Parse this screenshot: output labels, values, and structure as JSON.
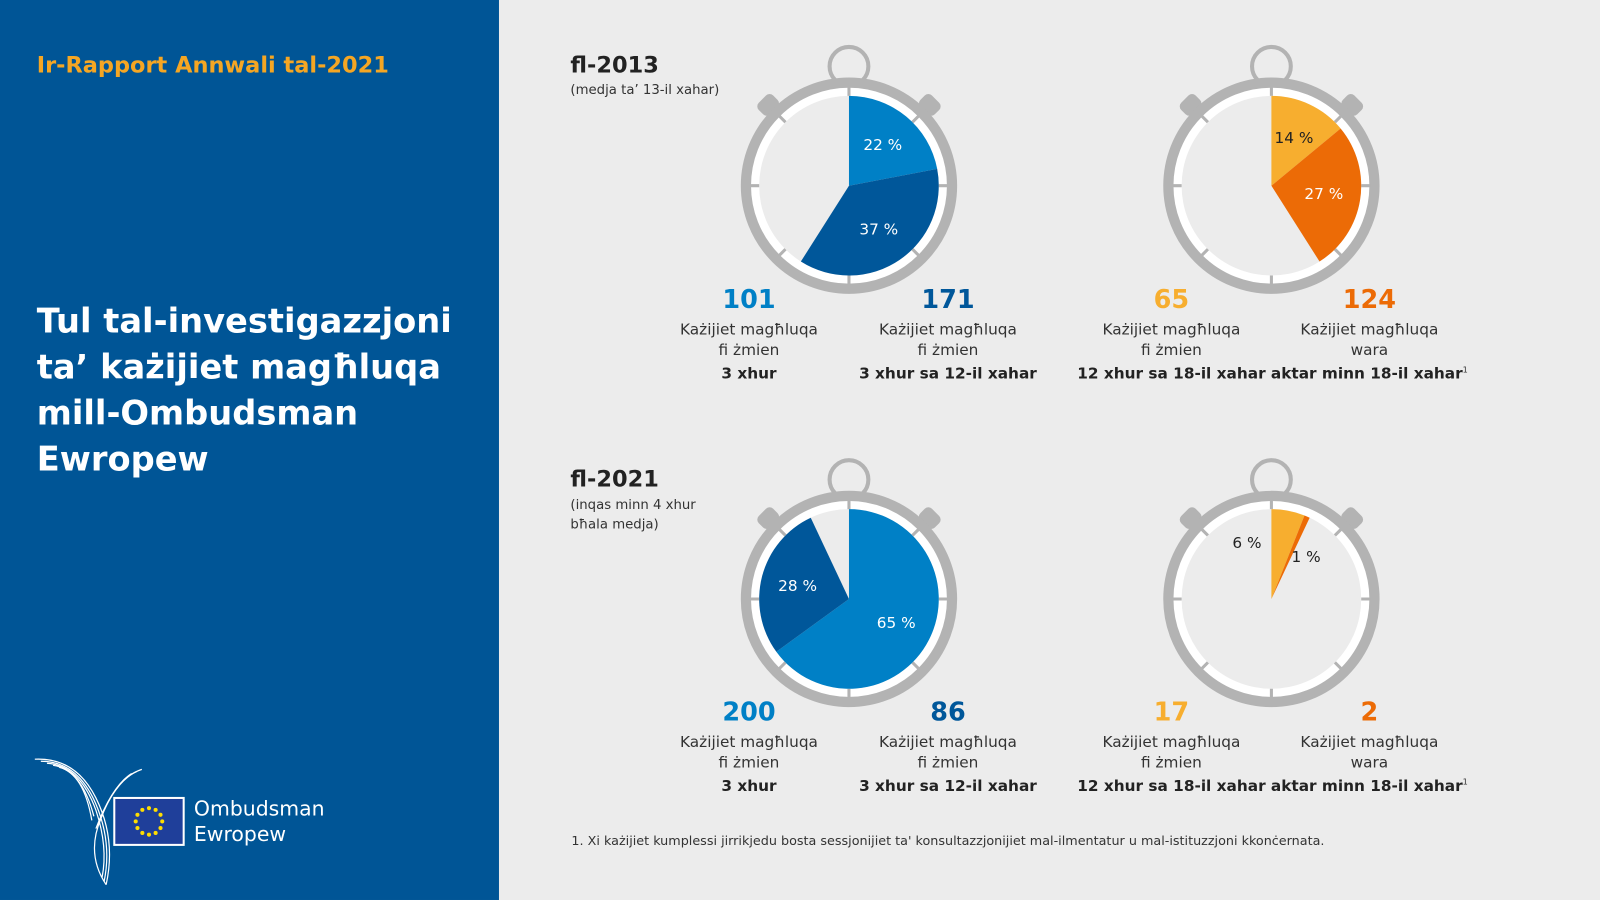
{
  "sidebar": {
    "report": "Ir-Rapport Annwali tal-2021",
    "title": "Tul tal-investigazzjoni ta’ każijiet magħluqa mill-Ombudsman Ewropew",
    "logo_line1": "Ombudsman",
    "logo_line2": "Ewropew"
  },
  "colors": {
    "light_blue": "#0080c6",
    "dark_blue": "#00579a",
    "yellow": "#f7ae2f",
    "orange": "#ec6b06",
    "sidebar": "#005596"
  },
  "sections": [
    {
      "year": "fl-2013",
      "sub1": "(medja ta’ 13-il xahar)",
      "sub2": "",
      "pies": [
        [
          {
            "pct": 22,
            "label": "22 %",
            "color": "#0080c6"
          },
          {
            "pct": 37,
            "label": "37 %",
            "color": "#00579a"
          }
        ],
        [
          {
            "pct": 14,
            "label": "14 %",
            "color": "#f7ae2f"
          },
          {
            "pct": 27,
            "label": "27 %",
            "color": "#ec6b06"
          }
        ]
      ],
      "cols": [
        {
          "num": "101",
          "l1": "Każijiet magħluqa",
          "l2": "fi żmien",
          "l3": "3 xhur",
          "sup": "",
          "color": "#0080c6"
        },
        {
          "num": "171",
          "l1": "Każijiet magħluqa",
          "l2": "fi żmien",
          "l3": "3 xhur sa 12-il xahar",
          "sup": "",
          "color": "#00579a"
        },
        {
          "num": "65",
          "l1": "Każijiet magħluqa",
          "l2": "fi żmien",
          "l3": "12 xhur sa 18-il xahar",
          "sup": "",
          "color": "#f7ae2f"
        },
        {
          "num": "124",
          "l1": "Każijiet magħluqa",
          "l2": "wara",
          "l3": "aktar minn 18-il xahar",
          "sup": "1",
          "color": "#ec6b06"
        }
      ]
    },
    {
      "year": "fl-2021",
      "sub1": "(inqas minn 4 xhur",
      "sub2": "bħala medja)",
      "pies": [
        [
          {
            "pct": 65,
            "label": "65 %",
            "color": "#0080c6"
          },
          {
            "pct": 28,
            "label": "28 %",
            "color": "#00579a"
          }
        ],
        [
          {
            "pct": 6,
            "label": "6 %",
            "color": "#f7ae2f"
          },
          {
            "pct": 1,
            "label": "1 %",
            "color": "#ec6b06"
          }
        ]
      ],
      "cols": [
        {
          "num": "200",
          "l1": "Każijiet magħluqa",
          "l2": "fi żmien",
          "l3": "3 xhur",
          "sup": "",
          "color": "#0080c6"
        },
        {
          "num": "86",
          "l1": "Każijiet magħluqa",
          "l2": "fi żmien",
          "l3": "3 xhur sa 12-il xahar",
          "sup": "",
          "color": "#00579a"
        },
        {
          "num": "17",
          "l1": "Każijiet magħluqa",
          "l2": "fi żmien",
          "l3": "12 xhur sa 18-il xahar",
          "sup": "",
          "color": "#f7ae2f"
        },
        {
          "num": "2",
          "l1": "Każijiet magħluqa",
          "l2": "wara",
          "l3": "aktar minn 18-il xahar",
          "sup": "1",
          "color": "#ec6b06"
        }
      ]
    }
  ],
  "footnote": "1.  Xi każijiet kumplessi jirrikjedu bosta sessjonijiet ta' konsultazzjonijiet mal-ilmentatur u mal-istituzzjoni kkonċernata."
}
